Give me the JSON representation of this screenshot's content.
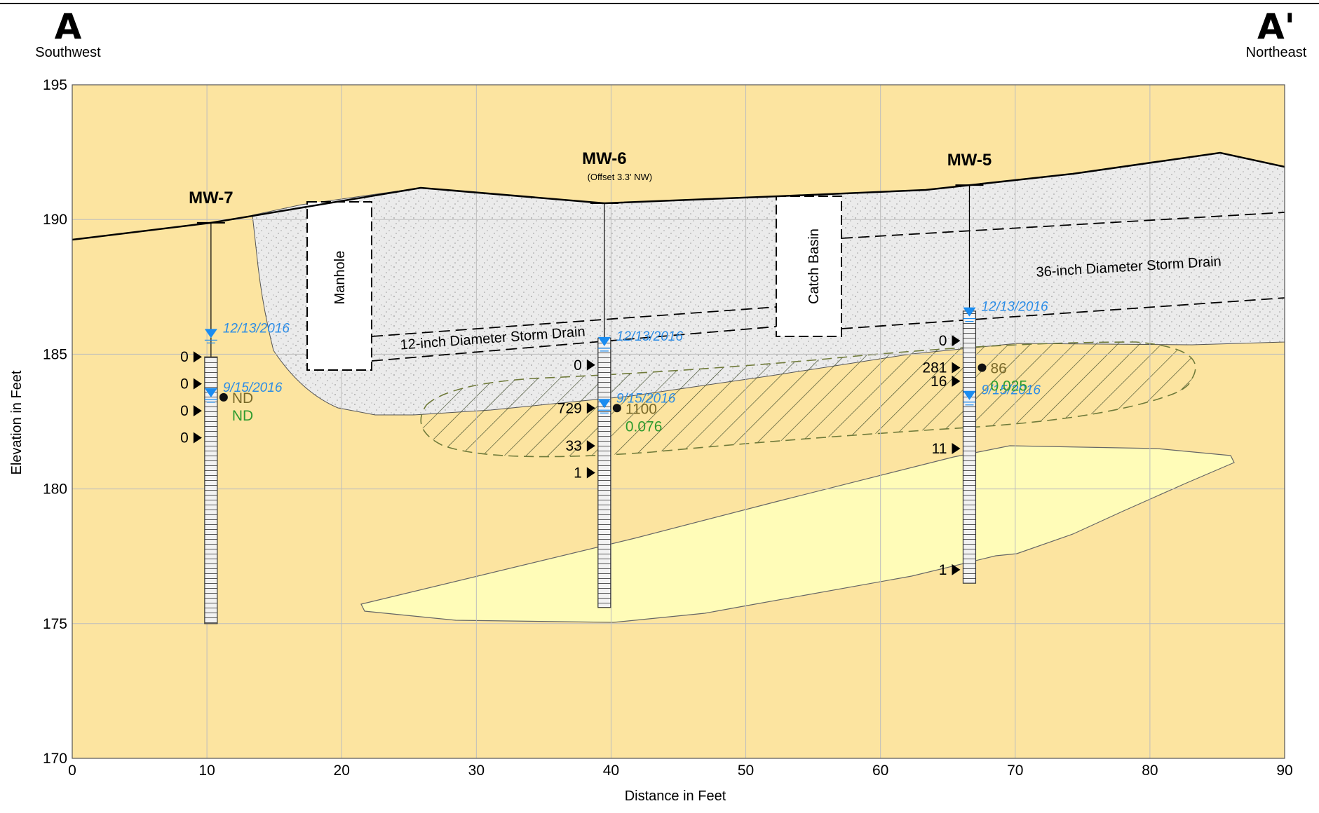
{
  "header": {
    "left_letter": "A",
    "left_direction": "Southwest",
    "right_letter": "A'",
    "right_direction": "Northeast"
  },
  "axes": {
    "x_title": "Distance in Feet",
    "y_title": "Elevation in Feet",
    "x_ticks": [
      "0",
      "10",
      "20",
      "30",
      "40",
      "50",
      "60",
      "70",
      "80",
      "90"
    ],
    "y_ticks": [
      "195",
      "190",
      "185",
      "180",
      "175",
      "170"
    ],
    "x_range": [
      0,
      90
    ],
    "y_range": [
      170,
      195
    ]
  },
  "colors": {
    "native_soil": "#fce4a0",
    "fill_material": "#ebebeb",
    "sand_lens": "#fffcb8",
    "water_level": "#1a8cf0",
    "conc_primary": "#7a6a2a",
    "conc_secondary": "#2e9b2e"
  },
  "structures": {
    "manhole_label": "Manhole",
    "catch_basin_label": "Catch Basin",
    "storm_drain_12": "12-inch Diameter Storm Drain",
    "storm_drain_36": "36-inch Diameter Storm Drain"
  },
  "wells": [
    {
      "name": "MW-7",
      "subtitle": "",
      "x_ft": 10.3,
      "screen_top_ft": 184.9,
      "screen_bottom_ft": 175.0,
      "water_levels": [
        {
          "date": "12/13/2016",
          "elev_ft": 185.6
        },
        {
          "date": "9/15/2016",
          "elev_ft": 183.4
        }
      ],
      "samples": [
        {
          "value": "0",
          "elev_ft": 184.9
        },
        {
          "value": "0",
          "elev_ft": 183.9
        },
        {
          "value": "0",
          "elev_ft": 182.9
        },
        {
          "value": "0",
          "elev_ft": 181.9
        }
      ],
      "concentration": {
        "elev_ft": 183.4,
        "primary": "ND",
        "secondary": "ND"
      }
    },
    {
      "name": "MW-6",
      "subtitle": "(Offset 3.3' NW)",
      "x_ft": 39.5,
      "screen_top_ft": 185.6,
      "screen_bottom_ft": 175.6,
      "water_levels": [
        {
          "date": "12/13/2016",
          "elev_ft": 185.3
        },
        {
          "date": "9/15/2016",
          "elev_ft": 183.0
        }
      ],
      "samples": [
        {
          "value": "0",
          "elev_ft": 184.6
        },
        {
          "value": "729",
          "elev_ft": 183.0
        },
        {
          "value": "33",
          "elev_ft": 181.6
        },
        {
          "value": "1",
          "elev_ft": 180.6
        }
      ],
      "concentration": {
        "elev_ft": 183.0,
        "primary": "1100",
        "secondary": "0.076"
      }
    },
    {
      "name": "MW-5",
      "subtitle": "",
      "x_ft": 66.6,
      "screen_top_ft": 186.6,
      "screen_bottom_ft": 176.5,
      "water_levels": [
        {
          "date": "12/13/2016",
          "elev_ft": 186.4
        },
        {
          "date": "9/15/2016",
          "elev_ft": 183.3
        }
      ],
      "samples": [
        {
          "value": "0",
          "elev_ft": 185.5
        },
        {
          "value": "281",
          "elev_ft": 184.5
        },
        {
          "value": "16",
          "elev_ft": 184.0
        },
        {
          "value": "11",
          "elev_ft": 181.5
        },
        {
          "value": "1",
          "elev_ft": 177.0
        }
      ],
      "concentration": {
        "elev_ft": 184.5,
        "primary": "86",
        "secondary": "0.025"
      }
    }
  ]
}
